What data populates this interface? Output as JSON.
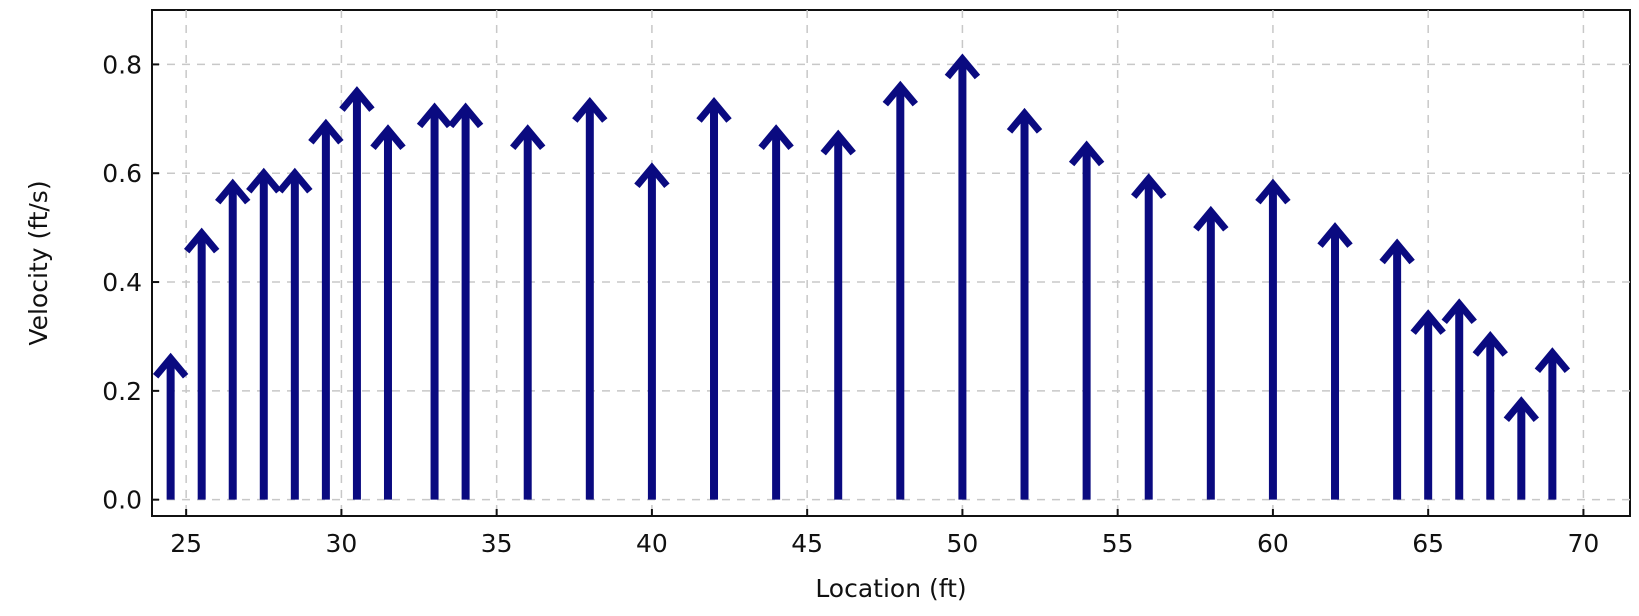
{
  "chart_data": {
    "type": "vector",
    "title": "",
    "xlabel": "Location (ft)",
    "ylabel": "Velocity (ft/s)",
    "xlim": [
      23.9,
      71.5
    ],
    "ylim": [
      -0.03,
      0.9
    ],
    "xticks": [
      25,
      30,
      35,
      40,
      45,
      50,
      55,
      60,
      65,
      70
    ],
    "yticks": [
      0.0,
      0.2,
      0.4,
      0.6,
      0.8
    ],
    "ytick_labels": [
      "0.0",
      "0.2",
      "0.4",
      "0.6",
      "0.8"
    ],
    "grid": true,
    "arrow_color": "#0a0a80",
    "x": [
      24.5,
      25.5,
      26.5,
      27.5,
      28.5,
      29.5,
      30.5,
      31.5,
      33,
      34,
      36,
      38,
      40,
      42,
      44,
      46,
      48,
      50,
      52,
      54,
      56,
      58,
      60,
      62,
      64,
      65,
      66,
      67,
      68,
      69
    ],
    "values": [
      0.26,
      0.49,
      0.58,
      0.6,
      0.6,
      0.69,
      0.75,
      0.68,
      0.72,
      0.72,
      0.68,
      0.73,
      0.61,
      0.73,
      0.68,
      0.67,
      0.76,
      0.81,
      0.71,
      0.65,
      0.59,
      0.53,
      0.58,
      0.5,
      0.47,
      0.34,
      0.36,
      0.3,
      0.18,
      0.27
    ]
  }
}
